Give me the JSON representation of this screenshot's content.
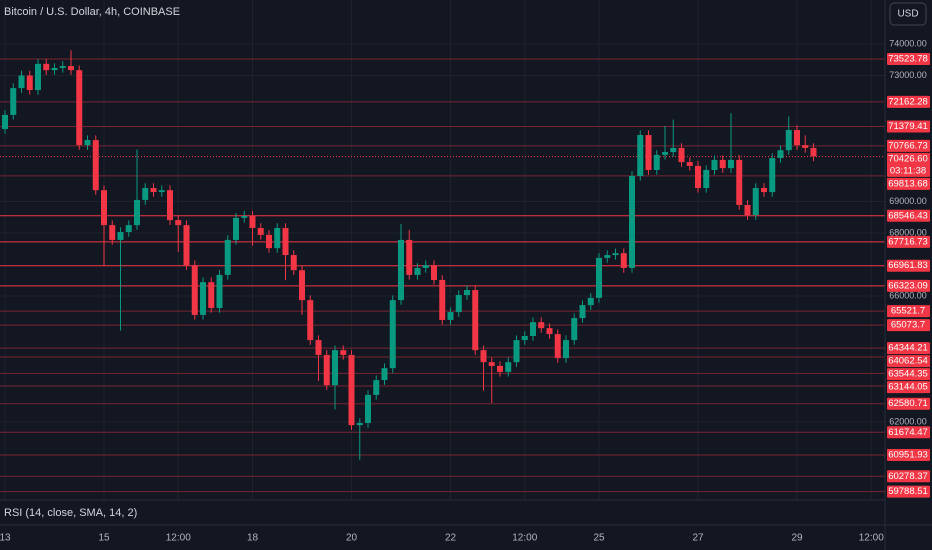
{
  "chart_data": {
    "type": "candlestick",
    "title": "Bitcoin / U.S. Dollar, 4h, COINBASE",
    "currency": "USD",
    "indicator": "RSI (14, close, SMA, 14, 2)",
    "up_color": "#089981",
    "down_color": "#f23645",
    "level_color": "#f23645",
    "categories": [
      "13",
      null,
      null,
      null,
      null,
      null,
      null,
      null,
      null,
      null,
      null,
      null,
      "15",
      null,
      null,
      null,
      null,
      null,
      null,
      null,
      null,
      "12:00",
      null,
      null,
      null,
      null,
      null,
      null,
      null,
      null,
      "18",
      null,
      null,
      null,
      null,
      null,
      null,
      null,
      null,
      null,
      null,
      null,
      "20",
      null,
      null,
      null,
      null,
      null,
      null,
      null,
      null,
      null,
      null,
      null,
      "22",
      null,
      null,
      null,
      null,
      null,
      null,
      null,
      null,
      "12:00",
      null,
      null,
      null,
      null,
      null,
      null,
      null,
      null,
      "25",
      null,
      null,
      null,
      null,
      null,
      null,
      null,
      null,
      null,
      null,
      null,
      "27",
      null,
      null,
      null,
      null,
      null,
      null,
      null,
      null,
      null,
      null,
      null,
      "29",
      null,
      null,
      null,
      null,
      null,
      null,
      null,
      null,
      "12:00"
    ],
    "open": [
      71300,
      71750,
      72600,
      73000,
      72540,
      73370,
      73170,
      73240,
      73300,
      73170,
      70790,
      70950,
      69360,
      68250,
      67780,
      68030,
      68250,
      69050,
      69430,
      69300,
      69360,
      68410,
      68250,
      66980,
      65400,
      66440,
      65620,
      66670,
      67780,
      68480,
      68540,
      68160,
      67940,
      67520,
      68160,
      67300,
      66820,
      65870,
      64600,
      64130,
      63170,
      64280,
      64130,
      61900,
      61970,
      62860,
      63330,
      63710,
      65870,
      67780,
      66670,
      66890,
      66980,
      66510,
      65240,
      65490,
      66030,
      66190,
      64280,
      63900,
      63780,
      63590,
      63900,
      64600,
      64730,
      65170,
      64980,
      64790,
      64030,
      64600,
      65300,
      65710,
      65940,
      67210,
      67300,
      67360,
      66890,
      69810,
      71110,
      70000,
      70480,
      70570,
      70700,
      70250,
      70130,
      69430,
      70000,
      70320,
      70060,
      70320,
      68890,
      68570,
      69430,
      69300,
      70380,
      70630,
      71270,
      70790,
      70700,
      null,
      null,
      null,
      null,
      null,
      null,
      null
    ],
    "high": [
      71900,
      72750,
      73150,
      73150,
      73520,
      73520,
      73390,
      73450,
      73800,
      73320,
      71100,
      71100,
      69510,
      68400,
      68180,
      68400,
      70650,
      69580,
      69580,
      69510,
      69510,
      68560,
      68400,
      67130,
      66590,
      66590,
      66820,
      67930,
      68630,
      68700,
      68700,
      68310,
      68090,
      68310,
      68310,
      67450,
      66970,
      66020,
      64750,
      64280,
      64430,
      64430,
      64280,
      62120,
      63010,
      63480,
      63860,
      66020,
      68280,
      68100,
      67040,
      67130,
      67130,
      66660,
      65640,
      66180,
      66340,
      66340,
      64430,
      64050,
      63930,
      64050,
      64750,
      64880,
      65320,
      65320,
      65130,
      64940,
      64750,
      65450,
      65860,
      66090,
      67360,
      67450,
      67510,
      67510,
      69960,
      71260,
      71260,
      70630,
      71400,
      71600,
      70850,
      70400,
      70280,
      70150,
      70470,
      70470,
      71800,
      70470,
      69040,
      69580,
      69580,
      70530,
      70780,
      71700,
      71420,
      71100,
      70850,
      null,
      null,
      null,
      null,
      null,
      null,
      null
    ],
    "low": [
      71150,
      71600,
      72450,
      72390,
      72390,
      73020,
      73020,
      73090,
      73020,
      70640,
      70640,
      69210,
      66960,
      67630,
      64900,
      67880,
      68100,
      68900,
      69150,
      69150,
      68260,
      67400,
      66830,
      65250,
      65250,
      65470,
      65470,
      66520,
      67630,
      68330,
      67600,
      67790,
      67370,
      67370,
      66500,
      66670,
      65400,
      64450,
      63300,
      63020,
      62400,
      63980,
      61750,
      60790,
      61820,
      62710,
      63180,
      63560,
      65720,
      66520,
      66520,
      66740,
      66360,
      65090,
      65090,
      65340,
      65880,
      64130,
      63000,
      62600,
      63440,
      63440,
      63750,
      64450,
      64580,
      64830,
      64640,
      63880,
      63880,
      64450,
      65150,
      65560,
      65790,
      67060,
      67150,
      66740,
      66740,
      69660,
      69850,
      69850,
      70330,
      70420,
      70100,
      69980,
      69280,
      69280,
      69850,
      69910,
      69910,
      68740,
      68420,
      68420,
      69150,
      69150,
      70230,
      70480,
      70640,
      70550,
      70280,
      null,
      null,
      null,
      null,
      null,
      null,
      null
    ],
    "close": [
      71750,
      72600,
      73000,
      72540,
      73370,
      73170,
      73240,
      73300,
      73170,
      70790,
      70950,
      69360,
      68250,
      67780,
      68030,
      68250,
      69050,
      69430,
      69300,
      69360,
      68410,
      68250,
      66980,
      65400,
      66440,
      65620,
      66670,
      67780,
      68480,
      68540,
      68160,
      67940,
      67520,
      68160,
      67300,
      66820,
      65870,
      64600,
      64130,
      63170,
      64280,
      64130,
      61900,
      61970,
      62860,
      63330,
      63710,
      65870,
      67780,
      66670,
      66890,
      66980,
      66510,
      65240,
      65490,
      66030,
      66190,
      64280,
      63900,
      63780,
      63590,
      63900,
      64600,
      64730,
      65170,
      64980,
      64790,
      64030,
      64600,
      65300,
      65710,
      65940,
      67210,
      67300,
      67360,
      66890,
      69810,
      71110,
      70000,
      70480,
      70570,
      70700,
      70250,
      70130,
      69430,
      70000,
      70320,
      70060,
      70320,
      68890,
      68570,
      69430,
      69300,
      70380,
      70630,
      71270,
      70790,
      70700,
      70430,
      null,
      null,
      null,
      null,
      null,
      null,
      null
    ],
    "ylim": [
      59524,
      75397
    ],
    "yticks": [
      {
        "value": 74000,
        "label": "74000.00"
      },
      {
        "value": 73000,
        "label": "73000.00"
      },
      {
        "value": 69000,
        "label": "69000.00"
      },
      {
        "value": 68000,
        "label": "68000.00"
      },
      {
        "value": 66000,
        "label": "66000.00"
      },
      {
        "value": 62000,
        "label": "62000.00"
      }
    ],
    "levels": [
      73523.78,
      72162.28,
      71379.41,
      70766.73,
      69813.68,
      65521.7,
      65073.7,
      64344.21,
      64062.54,
      63544.35,
      63144.05,
      62580.71,
      61674.47,
      60951.93,
      60278.37,
      59788.51
    ],
    "key_levels": [
      68546.43,
      67716.73,
      66961.83,
      66323.09
    ],
    "last_price": {
      "value": 70426.6,
      "label": "70426.60"
    },
    "countdown": "03:11:38",
    "grid": true
  }
}
